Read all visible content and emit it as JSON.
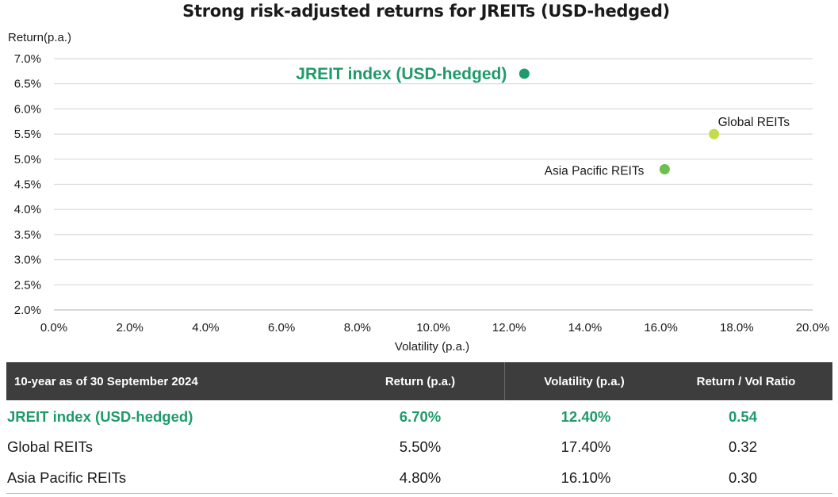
{
  "chart_data": {
    "type": "scatter",
    "title": "Strong risk-adjusted returns for JREITs (USD-hedged)",
    "xlabel": "Volatility (p.a.)",
    "ylabel": "Return(p.a.)",
    "xlim": [
      0,
      20
    ],
    "ylim": [
      2,
      7
    ],
    "x_ticks": [
      "0.0%",
      "2.0%",
      "4.0%",
      "6.0%",
      "8.0%",
      "10.0%",
      "12.0%",
      "14.0%",
      "16.0%",
      "18.0%",
      "20.0%"
    ],
    "y_ticks": [
      "2.0%",
      "2.5%",
      "3.0%",
      "3.5%",
      "4.0%",
      "4.5%",
      "5.0%",
      "5.5%",
      "6.0%",
      "6.5%",
      "7.0%"
    ],
    "grid": "horizontal",
    "points": [
      {
        "label": "JREIT index (USD-hedged)",
        "x": 12.4,
        "y": 6.7,
        "color": "#1f9a6a"
      },
      {
        "label": "Global REITs",
        "x": 17.4,
        "y": 5.5,
        "color": "#c5dc4a"
      },
      {
        "label": "Asia Pacific REITs",
        "x": 16.1,
        "y": 4.8,
        "color": "#6bbf4a"
      }
    ]
  },
  "table": {
    "headers": [
      "10-year as of 30 September 2024",
      "Return (p.a.)",
      "Volatility (p.a.)",
      "Return / Vol Ratio"
    ],
    "rows": [
      {
        "name": "JREIT index (USD-hedged)",
        "return": "6.70%",
        "volatility": "12.40%",
        "ratio": "0.54"
      },
      {
        "name": "Global REITs",
        "return": "5.50%",
        "volatility": "17.40%",
        "ratio": "0.32"
      },
      {
        "name": "Asia Pacific REITs",
        "return": "4.80%",
        "volatility": "16.10%",
        "ratio": "0.30"
      }
    ]
  },
  "colors": {
    "highlight": "#1f9a6a",
    "header_bg": "#3d3d3d",
    "grid": "#d9d9d9"
  }
}
